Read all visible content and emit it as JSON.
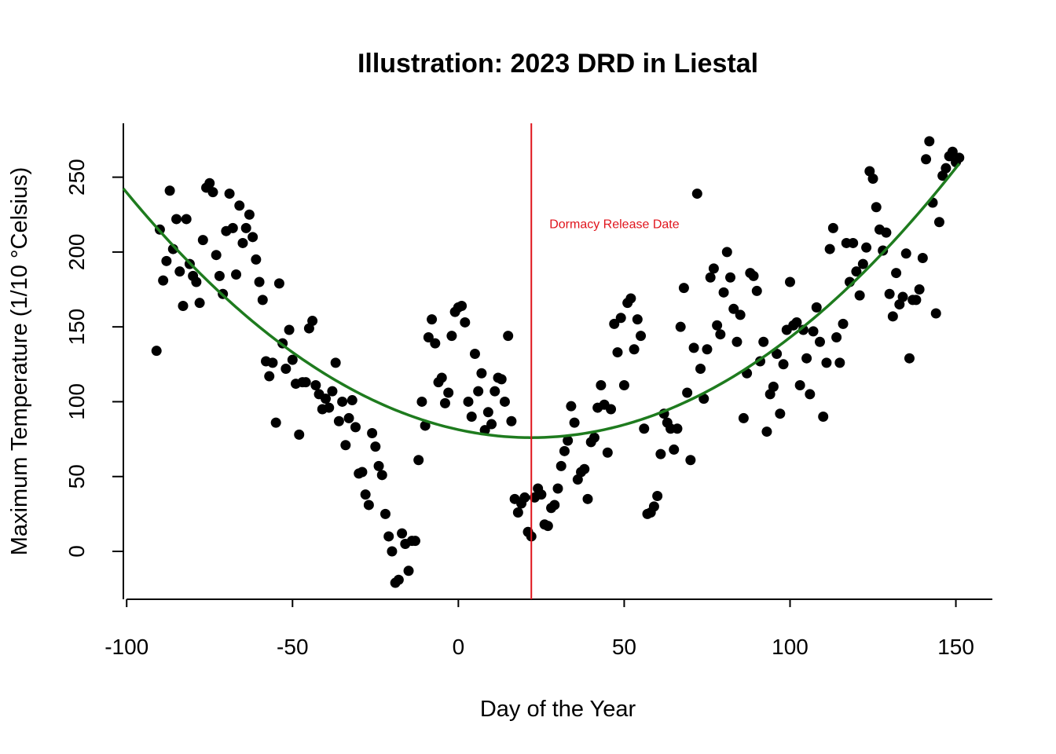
{
  "chart_data": {
    "type": "scatter",
    "title": "Illustration: 2023 DRD in Liestal",
    "xlabel": "Day of the Year",
    "ylabel": "Maximum Temperature (1/10 °Celsius)",
    "xlim": [
      -101,
      161
    ],
    "ylim": [
      -32,
      286
    ],
    "x_ticks": [
      -100,
      -50,
      0,
      50,
      100,
      150
    ],
    "y_ticks": [
      0,
      50,
      100,
      150,
      200,
      250
    ],
    "grid": false,
    "colors": {
      "points": "#000000",
      "curve": "#1e7b1e",
      "release_line": "#e0141c"
    },
    "release_line": {
      "x": 22,
      "label": "Dormacy Release Date"
    },
    "fit_curve": {
      "type": "quadratic",
      "vertex_x": 22,
      "vertex_y": 76,
      "a": 0.011
    },
    "points": [
      [
        -91,
        134
      ],
      [
        -90,
        215
      ],
      [
        -89,
        181
      ],
      [
        -88,
        194
      ],
      [
        -87,
        241
      ],
      [
        -86,
        202
      ],
      [
        -85,
        222
      ],
      [
        -84,
        187
      ],
      [
        -83,
        164
      ],
      [
        -82,
        222
      ],
      [
        -81,
        192
      ],
      [
        -80,
        184
      ],
      [
        -79,
        180
      ],
      [
        -78,
        166
      ],
      [
        -77,
        208
      ],
      [
        -76,
        243
      ],
      [
        -75,
        246
      ],
      [
        -74,
        240
      ],
      [
        -73,
        198
      ],
      [
        -72,
        184
      ],
      [
        -71,
        172
      ],
      [
        -70,
        214
      ],
      [
        -69,
        239
      ],
      [
        -68,
        216
      ],
      [
        -67,
        185
      ],
      [
        -66,
        231
      ],
      [
        -65,
        206
      ],
      [
        -64,
        216
      ],
      [
        -63,
        225
      ],
      [
        -62,
        210
      ],
      [
        -61,
        195
      ],
      [
        -60,
        180
      ],
      [
        -59,
        168
      ],
      [
        -58,
        127
      ],
      [
        -57,
        117
      ],
      [
        -56,
        126
      ],
      [
        -55,
        86
      ],
      [
        -54,
        179
      ],
      [
        -53,
        139
      ],
      [
        -52,
        122
      ],
      [
        -51,
        148
      ],
      [
        -50,
        128
      ],
      [
        -49,
        112
      ],
      [
        -48,
        78
      ],
      [
        -47,
        113
      ],
      [
        -46,
        113
      ],
      [
        -45,
        149
      ],
      [
        -44,
        154
      ],
      [
        -43,
        111
      ],
      [
        -42,
        105
      ],
      [
        -41,
        95
      ],
      [
        -40,
        102
      ],
      [
        -39,
        96
      ],
      [
        -38,
        107
      ],
      [
        -37,
        126
      ],
      [
        -36,
        87
      ],
      [
        -35,
        100
      ],
      [
        -34,
        71
      ],
      [
        -33,
        89
      ],
      [
        -32,
        101
      ],
      [
        -31,
        83
      ],
      [
        -30,
        52
      ],
      [
        -29,
        53
      ],
      [
        -28,
        38
      ],
      [
        -27,
        31
      ],
      [
        -26,
        79
      ],
      [
        -25,
        70
      ],
      [
        -24,
        57
      ],
      [
        -23,
        51
      ],
      [
        -22,
        25
      ],
      [
        -21,
        10
      ],
      [
        -20,
        0
      ],
      [
        -19,
        -21
      ],
      [
        -18,
        -19
      ],
      [
        -17,
        12
      ],
      [
        -16,
        5
      ],
      [
        -15,
        -13
      ],
      [
        -14,
        7
      ],
      [
        -13,
        7
      ],
      [
        -12,
        61
      ],
      [
        -11,
        100
      ],
      [
        -10,
        84
      ],
      [
        -9,
        143
      ],
      [
        -8,
        155
      ],
      [
        -7,
        139
      ],
      [
        -6,
        113
      ],
      [
        -5,
        116
      ],
      [
        -4,
        99
      ],
      [
        -3,
        106
      ],
      [
        -2,
        144
      ],
      [
        -1,
        160
      ],
      [
        0,
        163
      ],
      [
        1,
        164
      ],
      [
        2,
        153
      ],
      [
        3,
        100
      ],
      [
        4,
        90
      ],
      [
        5,
        132
      ],
      [
        6,
        107
      ],
      [
        7,
        119
      ],
      [
        8,
        81
      ],
      [
        9,
        93
      ],
      [
        10,
        85
      ],
      [
        11,
        107
      ],
      [
        12,
        116
      ],
      [
        13,
        115
      ],
      [
        14,
        100
      ],
      [
        15,
        144
      ],
      [
        16,
        87
      ],
      [
        17,
        35
      ],
      [
        18,
        26
      ],
      [
        19,
        32
      ],
      [
        20,
        36
      ],
      [
        21,
        13
      ],
      [
        22,
        10
      ],
      [
        23,
        36
      ],
      [
        24,
        42
      ],
      [
        25,
        38
      ],
      [
        26,
        18
      ],
      [
        27,
        17
      ],
      [
        28,
        29
      ],
      [
        29,
        31
      ],
      [
        30,
        42
      ],
      [
        31,
        57
      ],
      [
        32,
        67
      ],
      [
        33,
        74
      ],
      [
        34,
        97
      ],
      [
        35,
        86
      ],
      [
        36,
        48
      ],
      [
        37,
        53
      ],
      [
        38,
        55
      ],
      [
        39,
        35
      ],
      [
        40,
        73
      ],
      [
        41,
        76
      ],
      [
        42,
        96
      ],
      [
        43,
        111
      ],
      [
        44,
        98
      ],
      [
        45,
        66
      ],
      [
        46,
        95
      ],
      [
        47,
        152
      ],
      [
        48,
        133
      ],
      [
        49,
        156
      ],
      [
        50,
        111
      ],
      [
        51,
        166
      ],
      [
        52,
        169
      ],
      [
        53,
        135
      ],
      [
        54,
        155
      ],
      [
        55,
        144
      ],
      [
        56,
        82
      ],
      [
        57,
        25
      ],
      [
        58,
        26
      ],
      [
        59,
        30
      ],
      [
        60,
        37
      ],
      [
        61,
        65
      ],
      [
        62,
        92
      ],
      [
        63,
        86
      ],
      [
        64,
        82
      ],
      [
        65,
        68
      ],
      [
        66,
        82
      ],
      [
        67,
        150
      ],
      [
        68,
        176
      ],
      [
        69,
        106
      ],
      [
        70,
        61
      ],
      [
        71,
        136
      ],
      [
        72,
        239
      ],
      [
        73,
        122
      ],
      [
        74,
        102
      ],
      [
        75,
        135
      ],
      [
        76,
        183
      ],
      [
        77,
        189
      ],
      [
        78,
        151
      ],
      [
        79,
        145
      ],
      [
        80,
        173
      ],
      [
        81,
        200
      ],
      [
        82,
        183
      ],
      [
        83,
        162
      ],
      [
        84,
        140
      ],
      [
        85,
        158
      ],
      [
        86,
        89
      ],
      [
        87,
        119
      ],
      [
        88,
        186
      ],
      [
        89,
        184
      ],
      [
        90,
        174
      ],
      [
        91,
        127
      ],
      [
        92,
        140
      ],
      [
        93,
        80
      ],
      [
        94,
        105
      ],
      [
        95,
        110
      ],
      [
        96,
        132
      ],
      [
        97,
        92
      ],
      [
        98,
        125
      ],
      [
        99,
        148
      ],
      [
        100,
        180
      ],
      [
        101,
        151
      ],
      [
        102,
        153
      ],
      [
        103,
        111
      ],
      [
        104,
        148
      ],
      [
        105,
        129
      ],
      [
        106,
        105
      ],
      [
        107,
        147
      ],
      [
        108,
        163
      ],
      [
        109,
        140
      ],
      [
        110,
        90
      ],
      [
        111,
        126
      ],
      [
        112,
        202
      ],
      [
        113,
        216
      ],
      [
        114,
        143
      ],
      [
        115,
        126
      ],
      [
        116,
        152
      ],
      [
        117,
        206
      ],
      [
        118,
        180
      ],
      [
        119,
        206
      ],
      [
        120,
        187
      ],
      [
        121,
        171
      ],
      [
        122,
        192
      ],
      [
        123,
        203
      ],
      [
        124,
        254
      ],
      [
        125,
        249
      ],
      [
        126,
        230
      ],
      [
        127,
        215
      ],
      [
        128,
        201
      ],
      [
        129,
        213
      ],
      [
        130,
        172
      ],
      [
        131,
        157
      ],
      [
        132,
        186
      ],
      [
        133,
        165
      ],
      [
        134,
        170
      ],
      [
        135,
        199
      ],
      [
        136,
        129
      ],
      [
        137,
        168
      ],
      [
        138,
        168
      ],
      [
        139,
        175
      ],
      [
        140,
        196
      ],
      [
        141,
        262
      ],
      [
        142,
        274
      ],
      [
        143,
        233
      ],
      [
        144,
        159
      ],
      [
        145,
        220
      ],
      [
        146,
        251
      ],
      [
        147,
        256
      ],
      [
        148,
        264
      ],
      [
        149,
        267
      ],
      [
        150,
        260
      ],
      [
        151,
        263
      ]
    ]
  }
}
